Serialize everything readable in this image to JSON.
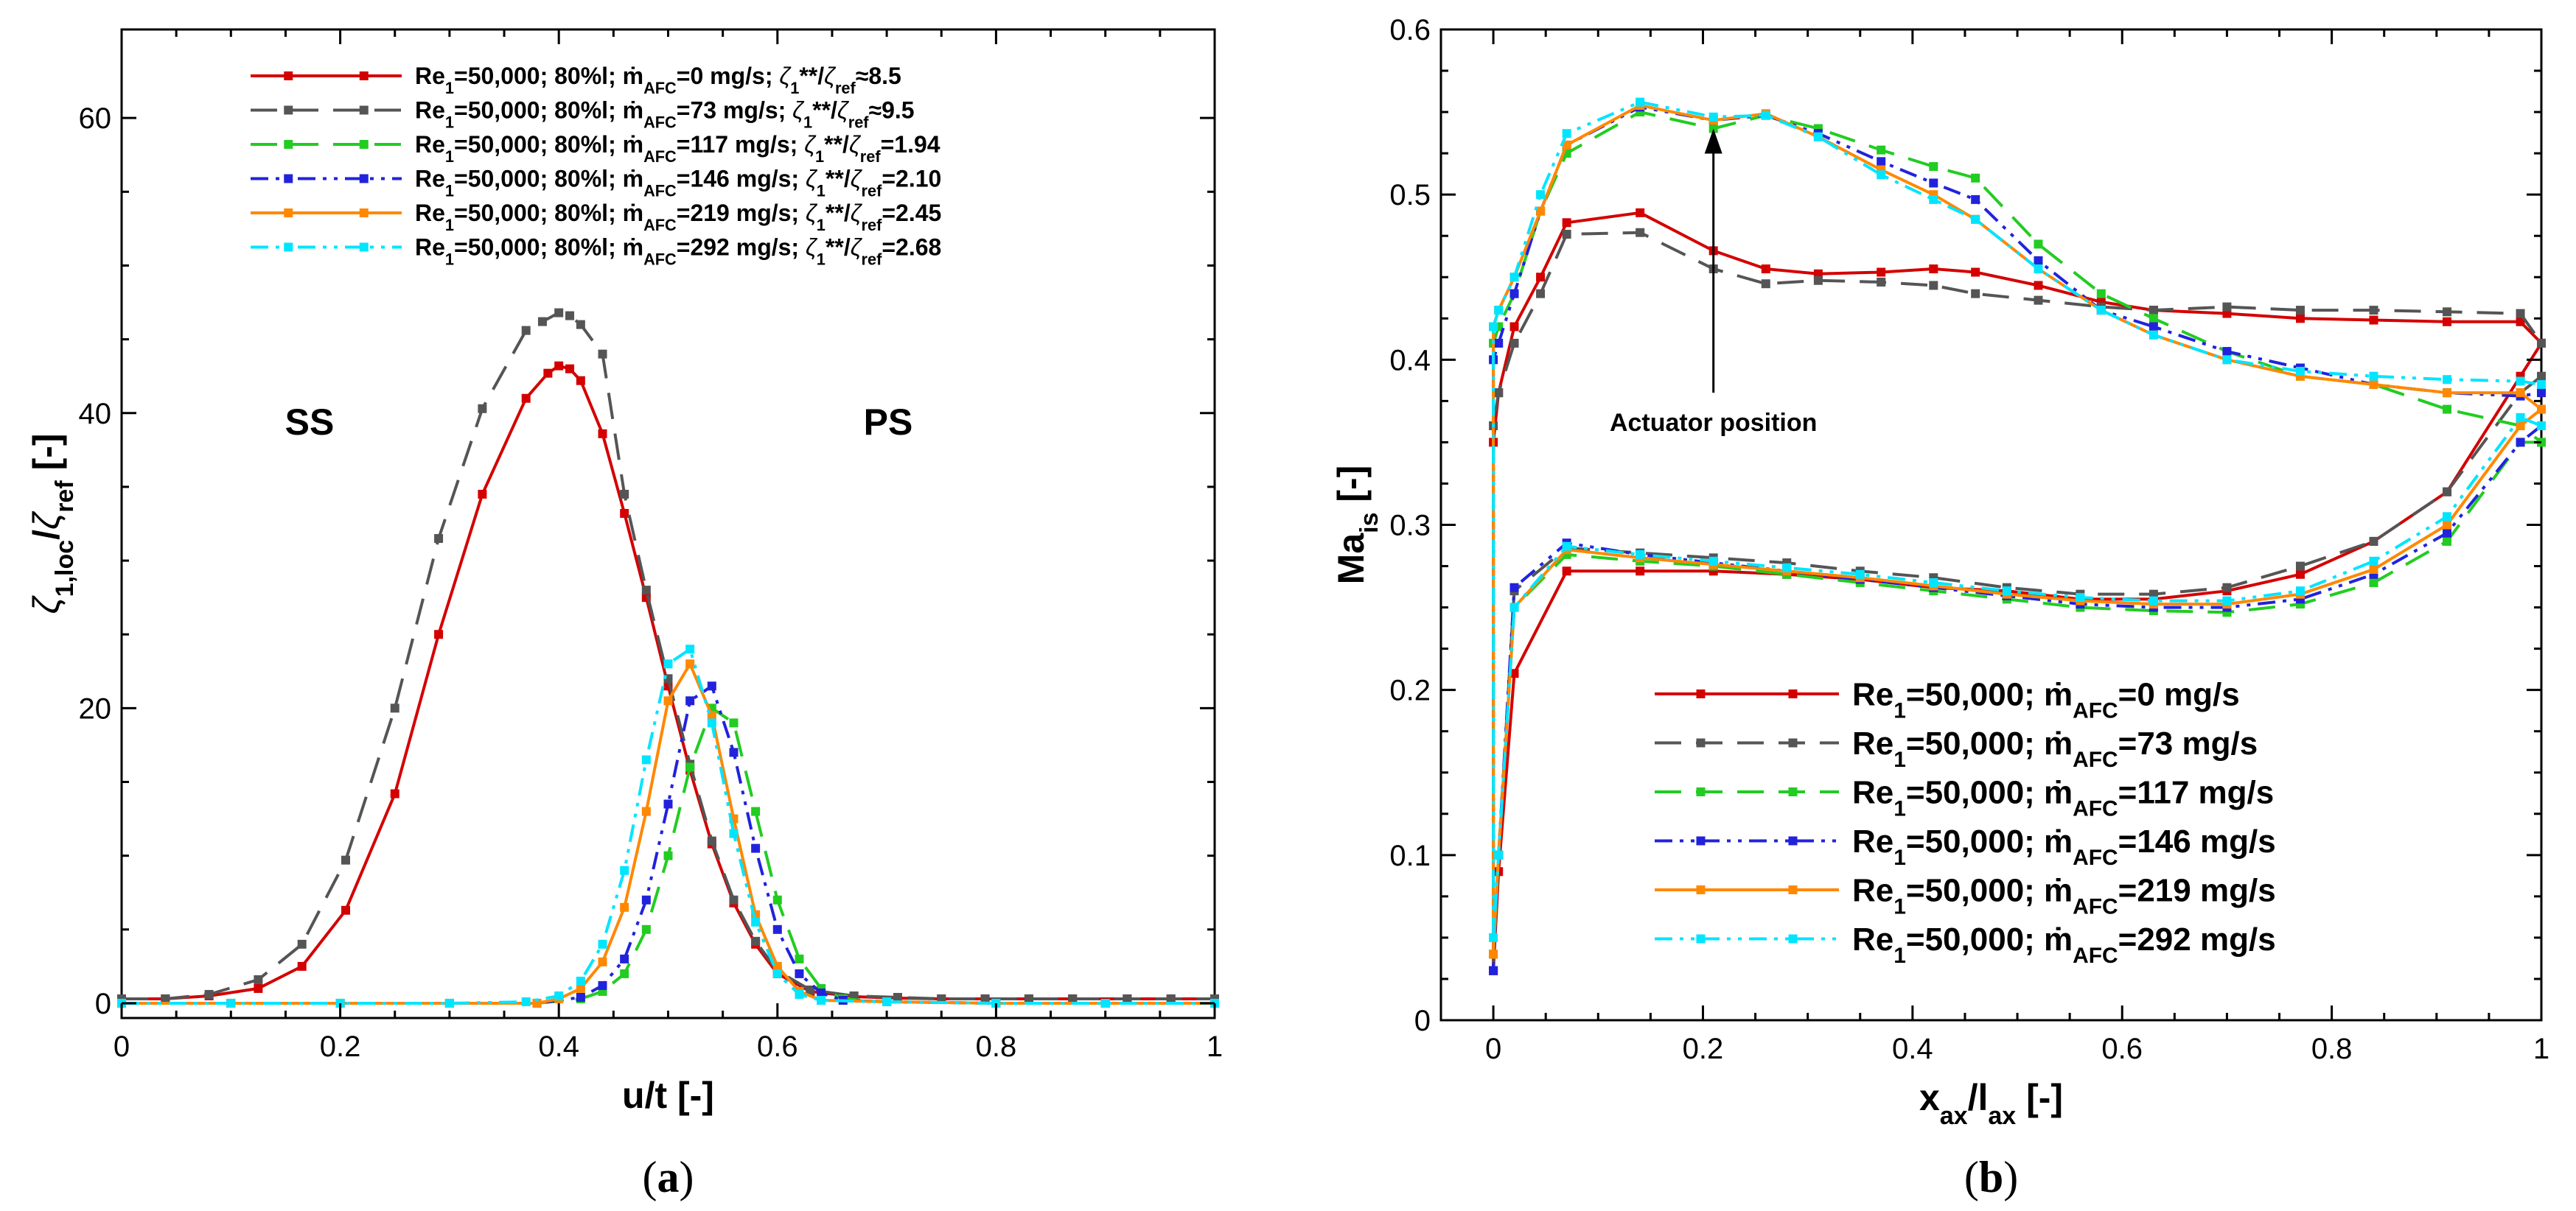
{
  "chart_data": [
    {
      "type": "line",
      "panel": "(a)",
      "xlabel": "u/t [-]",
      "ylabel": "ζ1,loc/ζref [-]",
      "xlim": [
        0,
        1
      ],
      "ylim": [
        -1,
        66
      ],
      "xticks": [
        "0",
        "0.2",
        "0.4",
        "0.6",
        "0.8",
        "1"
      ],
      "yticks": [
        "0",
        "20",
        "40",
        "60"
      ],
      "legend_position": "top-center",
      "annotations": [
        "SS",
        "PS"
      ],
      "series": [
        {
          "name": "Re1=50,000; 80%l; ṁAFC=0 mg/s; ζ1**/ζref≈8.5",
          "color": "#d40000",
          "dash": "solid",
          "x": [
            0,
            0.04,
            0.08,
            0.125,
            0.165,
            0.205,
            0.25,
            0.29,
            0.33,
            0.37,
            0.39,
            0.4,
            0.41,
            0.42,
            0.44,
            0.46,
            0.48,
            0.5,
            0.52,
            0.54,
            0.56,
            0.58,
            0.6,
            0.63,
            0.67,
            0.71,
            0.75,
            0.79,
            0.83,
            0.87,
            0.92,
            0.96,
            1.0
          ],
          "y": [
            0.3,
            0.3,
            0.5,
            1.0,
            2.5,
            6.3,
            14.2,
            25,
            34.5,
            41,
            42.7,
            43.2,
            43,
            42.2,
            38.6,
            33.2,
            27.5,
            21.5,
            15.8,
            10.8,
            6.8,
            4.0,
            2.0,
            0.8,
            0.45,
            0.35,
            0.3,
            0.3,
            0.3,
            0.3,
            0.3,
            0.3,
            0.3
          ]
        },
        {
          "name": "Re1=50,000; 80%l; ṁAFC=73 mg/s; ζ1**/ζref≈9.5",
          "color": "#555555",
          "dash": "dash",
          "x": [
            0,
            0.04,
            0.08,
            0.125,
            0.165,
            0.205,
            0.25,
            0.29,
            0.33,
            0.37,
            0.385,
            0.4,
            0.41,
            0.42,
            0.44,
            0.46,
            0.48,
            0.5,
            0.52,
            0.54,
            0.56,
            0.58,
            0.6,
            0.63,
            0.67,
            0.71,
            0.75,
            0.79,
            0.83,
            0.87,
            0.92,
            0.96,
            1.0
          ],
          "y": [
            0.3,
            0.3,
            0.6,
            1.6,
            4.0,
            9.7,
            20,
            31.5,
            40.3,
            45.6,
            46.2,
            46.8,
            46.6,
            46.0,
            44.0,
            34.5,
            28.0,
            22.0,
            16.2,
            11.0,
            7.0,
            4.2,
            2.2,
            0.9,
            0.5,
            0.4,
            0.3,
            0.3,
            0.3,
            0.3,
            0.3,
            0.3,
            0.3
          ]
        },
        {
          "name": "Re1=50,000; 80%l; ṁAFC=117 mg/s; ζ1**/ζref=1.94",
          "color": "#22cc22",
          "dash": "dash",
          "x": [
            0,
            0.1,
            0.2,
            0.3,
            0.38,
            0.42,
            0.44,
            0.46,
            0.48,
            0.5,
            0.52,
            0.54,
            0.56,
            0.58,
            0.6,
            0.62,
            0.64,
            0.66,
            0.7,
            0.8,
            0.9,
            1.0
          ],
          "y": [
            0,
            0,
            0,
            0,
            0,
            0.3,
            0.8,
            2.0,
            5.0,
            10.0,
            16.0,
            20.0,
            19.0,
            13.0,
            7.0,
            3.0,
            1.0,
            0.3,
            0.1,
            0,
            0,
            0
          ]
        },
        {
          "name": "Re1=50,000; 80%l; ṁAFC=146 mg/s; ζ1**/ζref=2.10",
          "color": "#2222dd",
          "dash": "dashdotdot",
          "x": [
            0,
            0.1,
            0.2,
            0.3,
            0.38,
            0.42,
            0.44,
            0.46,
            0.48,
            0.5,
            0.52,
            0.54,
            0.56,
            0.58,
            0.6,
            0.62,
            0.64,
            0.66,
            0.7,
            0.8,
            0.9,
            1.0
          ],
          "y": [
            0,
            0,
            0,
            0,
            0,
            0.4,
            1.2,
            3.0,
            7.0,
            13.5,
            20.5,
            21.5,
            17.0,
            10.5,
            5.0,
            2.0,
            0.7,
            0.2,
            0.1,
            0,
            0,
            0
          ]
        },
        {
          "name": "Re1=50,000; 80%l; ṁAFC=219 mg/s; ζ1**/ζref=2.45",
          "color": "#ff8800",
          "dash": "solid",
          "x": [
            0,
            0.1,
            0.2,
            0.3,
            0.38,
            0.4,
            0.42,
            0.44,
            0.46,
            0.48,
            0.5,
            0.52,
            0.54,
            0.56,
            0.58,
            0.6,
            0.62,
            0.64,
            0.7,
            0.8,
            0.9,
            1.0
          ],
          "y": [
            0,
            0,
            0,
            0,
            0,
            0.3,
            1.0,
            2.8,
            6.5,
            13.0,
            20.5,
            23.0,
            19.5,
            12.5,
            6.0,
            2.5,
            0.8,
            0.2,
            0.1,
            0,
            0,
            0
          ]
        },
        {
          "name": "Re1=50,000; 80%l; ṁAFC=292 mg/s; ζ1**/ζref=2.68",
          "color": "#00e5ff",
          "dash": "dashdotdot",
          "x": [
            0,
            0.1,
            0.2,
            0.3,
            0.37,
            0.4,
            0.42,
            0.44,
            0.46,
            0.48,
            0.5,
            0.52,
            0.54,
            0.56,
            0.58,
            0.6,
            0.62,
            0.64,
            0.7,
            0.8,
            0.9,
            1.0
          ],
          "y": [
            0,
            0,
            0,
            0,
            0.1,
            0.5,
            1.5,
            4.0,
            9.0,
            16.5,
            23.0,
            24.0,
            19.0,
            11.5,
            5.5,
            2.0,
            0.6,
            0.2,
            0.1,
            0,
            0,
            0
          ]
        }
      ]
    },
    {
      "type": "line",
      "panel": "(b)",
      "xlabel": "xax/lax [-]",
      "ylabel": "Mais [-]",
      "xlim": [
        -0.05,
        1.0
      ],
      "ylim": [
        0,
        0.6
      ],
      "xticks": [
        "0",
        "0.2",
        "0.4",
        "0.6",
        "0.8",
        "1"
      ],
      "yticks": [
        "0",
        "0.1",
        "0.2",
        "0.3",
        "0.4",
        "0.5",
        "0.6"
      ],
      "legend_position": "bottom-right",
      "annotation": {
        "text": "Actuator position",
        "x": 0.21,
        "y_tip": 0.54,
        "y_tail": 0.38
      },
      "series": [
        {
          "name": "Re1=50,000; ṁAFC=0 mg/s",
          "color": "#d40000",
          "dash": "solid",
          "x": [
            1.0,
            0.98,
            0.91,
            0.84,
            0.77,
            0.7,
            0.63,
            0.56,
            0.49,
            0.42,
            0.35,
            0.28,
            0.21,
            0.14,
            0.07,
            0.02,
            0.005,
            0.0,
            0.0,
            0.005,
            0.02,
            0.045,
            0.07,
            0.14,
            0.21,
            0.26,
            0.31,
            0.37,
            0.42,
            0.46,
            0.52,
            0.58,
            0.63,
            0.7,
            0.77,
            0.84,
            0.91,
            0.98,
            1.0
          ],
          "y": [
            0.41,
            0.39,
            0.32,
            0.29,
            0.27,
            0.26,
            0.255,
            0.255,
            0.26,
            0.262,
            0.267,
            0.27,
            0.272,
            0.272,
            0.272,
            0.21,
            0.09,
            0.03,
            0.35,
            0.38,
            0.42,
            0.45,
            0.483,
            0.489,
            0.466,
            0.455,
            0.452,
            0.453,
            0.455,
            0.453,
            0.445,
            0.435,
            0.43,
            0.428,
            0.425,
            0.424,
            0.423,
            0.423,
            0.41
          ]
        },
        {
          "name": "Re1=50,000; ṁAFC=73 mg/s",
          "color": "#555555",
          "dash": "dash",
          "x": [
            1.0,
            0.98,
            0.91,
            0.84,
            0.77,
            0.7,
            0.63,
            0.56,
            0.49,
            0.42,
            0.35,
            0.28,
            0.21,
            0.14,
            0.07,
            0.02,
            0.005,
            0.0,
            0.0,
            0.005,
            0.02,
            0.045,
            0.07,
            0.14,
            0.21,
            0.26,
            0.31,
            0.37,
            0.42,
            0.46,
            0.52,
            0.58,
            0.63,
            0.7,
            0.77,
            0.84,
            0.91,
            0.98,
            1.0
          ],
          "y": [
            0.39,
            0.38,
            0.32,
            0.29,
            0.275,
            0.262,
            0.258,
            0.258,
            0.262,
            0.268,
            0.272,
            0.277,
            0.28,
            0.283,
            0.286,
            0.26,
            0.1,
            0.03,
            0.36,
            0.38,
            0.41,
            0.44,
            0.476,
            0.477,
            0.455,
            0.446,
            0.448,
            0.447,
            0.445,
            0.44,
            0.436,
            0.432,
            0.43,
            0.432,
            0.43,
            0.43,
            0.429,
            0.428,
            0.41
          ]
        },
        {
          "name": "Re1=50,000; ṁAFC=117 mg/s",
          "color": "#22cc22",
          "dash": "dash",
          "x": [
            1.0,
            0.98,
            0.91,
            0.84,
            0.77,
            0.7,
            0.63,
            0.56,
            0.49,
            0.42,
            0.35,
            0.28,
            0.21,
            0.14,
            0.07,
            0.02,
            0.005,
            0.0,
            0.0,
            0.005,
            0.02,
            0.045,
            0.07,
            0.14,
            0.21,
            0.26,
            0.31,
            0.37,
            0.42,
            0.46,
            0.52,
            0.58,
            0.63,
            0.7,
            0.77,
            0.84,
            0.91,
            0.98,
            1.0
          ],
          "y": [
            0.35,
            0.35,
            0.29,
            0.265,
            0.252,
            0.247,
            0.248,
            0.25,
            0.255,
            0.26,
            0.265,
            0.27,
            0.275,
            0.278,
            0.282,
            0.25,
            0.1,
            0.04,
            0.41,
            0.42,
            0.44,
            0.49,
            0.525,
            0.55,
            0.54,
            0.548,
            0.54,
            0.527,
            0.517,
            0.51,
            0.47,
            0.44,
            0.425,
            0.405,
            0.39,
            0.385,
            0.37,
            0.36,
            0.35
          ]
        },
        {
          "name": "Re1=50,000; ṁAFC=146 mg/s",
          "color": "#2222dd",
          "dash": "dashdotdot",
          "x": [
            1.0,
            0.98,
            0.91,
            0.84,
            0.77,
            0.7,
            0.63,
            0.56,
            0.49,
            0.42,
            0.35,
            0.28,
            0.21,
            0.14,
            0.07,
            0.02,
            0.005,
            0.0,
            0.0,
            0.005,
            0.02,
            0.045,
            0.07,
            0.14,
            0.21,
            0.26,
            0.31,
            0.37,
            0.42,
            0.46,
            0.52,
            0.58,
            0.63,
            0.7,
            0.77,
            0.84,
            0.91,
            0.98,
            1.0
          ],
          "y": [
            0.36,
            0.35,
            0.295,
            0.27,
            0.255,
            0.25,
            0.25,
            0.252,
            0.257,
            0.262,
            0.267,
            0.272,
            0.277,
            0.282,
            0.289,
            0.262,
            0.1,
            0.03,
            0.4,
            0.41,
            0.44,
            0.49,
            0.53,
            0.553,
            0.545,
            0.548,
            0.537,
            0.52,
            0.507,
            0.497,
            0.46,
            0.43,
            0.42,
            0.405,
            0.395,
            0.385,
            0.38,
            0.378,
            0.38
          ]
        },
        {
          "name": "Re1=50,000; ṁAFC=219 mg/s",
          "color": "#ff8800",
          "dash": "solid",
          "x": [
            1.0,
            0.98,
            0.91,
            0.84,
            0.77,
            0.7,
            0.63,
            0.56,
            0.49,
            0.42,
            0.35,
            0.28,
            0.21,
            0.14,
            0.07,
            0.02,
            0.005,
            0.0,
            0.0,
            0.005,
            0.02,
            0.045,
            0.07,
            0.14,
            0.21,
            0.26,
            0.31,
            0.37,
            0.42,
            0.46,
            0.52,
            0.58,
            0.63,
            0.7,
            0.77,
            0.84,
            0.91,
            0.98,
            1.0
          ],
          "y": [
            0.37,
            0.36,
            0.3,
            0.273,
            0.258,
            0.252,
            0.252,
            0.254,
            0.258,
            0.263,
            0.268,
            0.272,
            0.276,
            0.28,
            0.285,
            0.25,
            0.1,
            0.04,
            0.42,
            0.43,
            0.45,
            0.49,
            0.53,
            0.554,
            0.545,
            0.549,
            0.535,
            0.515,
            0.5,
            0.485,
            0.455,
            0.43,
            0.415,
            0.4,
            0.39,
            0.385,
            0.38,
            0.38,
            0.37
          ]
        },
        {
          "name": "Re1=50,000; ṁAFC=292 mg/s",
          "color": "#00e5ff",
          "dash": "dashdotdot",
          "x": [
            1.0,
            0.98,
            0.91,
            0.84,
            0.77,
            0.7,
            0.63,
            0.56,
            0.49,
            0.42,
            0.35,
            0.28,
            0.21,
            0.14,
            0.07,
            0.02,
            0.005,
            0.0,
            0.0,
            0.005,
            0.02,
            0.045,
            0.07,
            0.14,
            0.21,
            0.26,
            0.31,
            0.37,
            0.42,
            0.46,
            0.52,
            0.58,
            0.63,
            0.7,
            0.77,
            0.84,
            0.91,
            0.98,
            1.0
          ],
          "y": [
            0.36,
            0.365,
            0.305,
            0.278,
            0.26,
            0.254,
            0.254,
            0.256,
            0.26,
            0.265,
            0.27,
            0.274,
            0.278,
            0.282,
            0.287,
            0.25,
            0.1,
            0.05,
            0.42,
            0.43,
            0.45,
            0.5,
            0.537,
            0.556,
            0.547,
            0.548,
            0.535,
            0.512,
            0.497,
            0.485,
            0.455,
            0.43,
            0.415,
            0.4,
            0.393,
            0.39,
            0.388,
            0.387,
            0.385
          ]
        }
      ]
    }
  ]
}
